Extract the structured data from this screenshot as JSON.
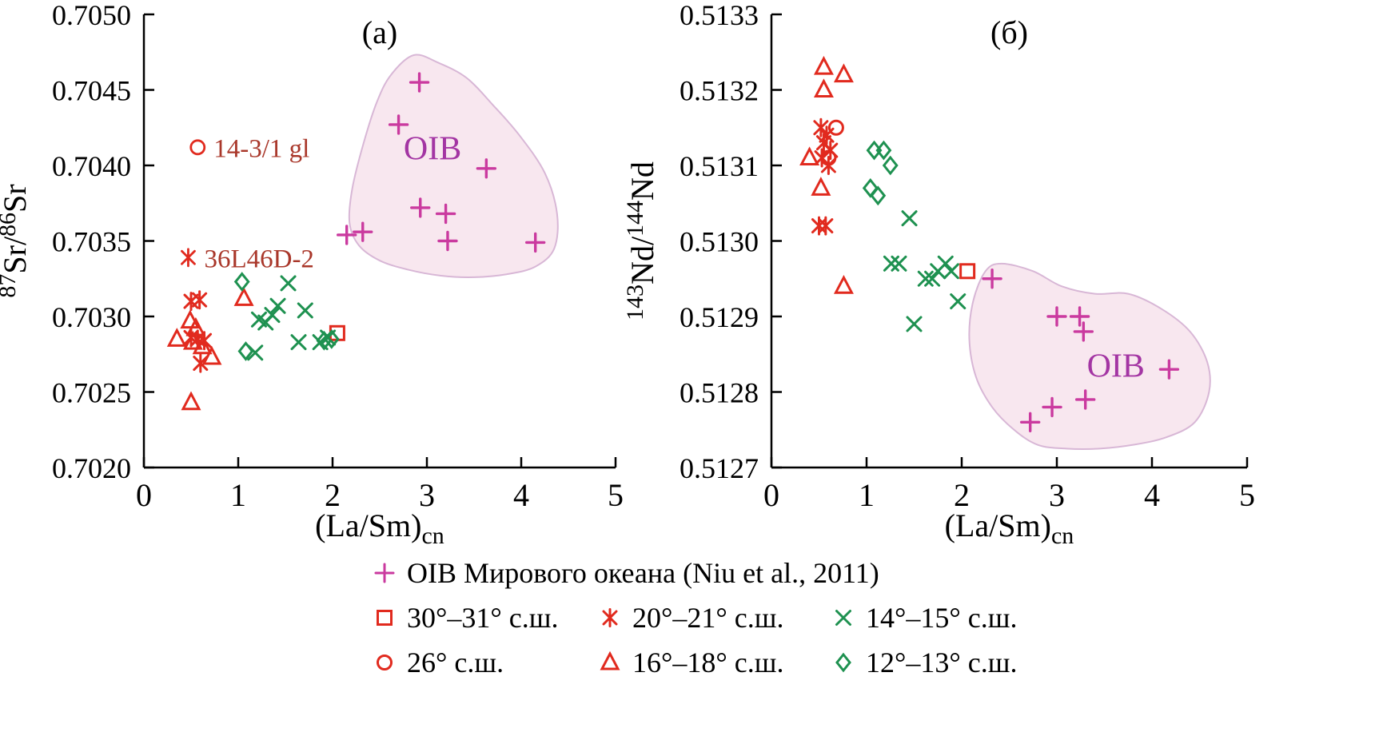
{
  "colors": {
    "red": "#e12a1e",
    "green": "#1e9150",
    "magenta": "#ca3a9f",
    "oib_fill": "#f8e7ef",
    "oib_stroke": "#d8b7d6",
    "oib_text": "#a335a3",
    "annotation_text": "#a9372a",
    "axis": "#000000"
  },
  "legend": {
    "rows": [
      [
        {
          "marker": "plus",
          "color_key": "magenta",
          "label": "OIB Мирового океана (Niu et al., 2011)"
        }
      ],
      [
        {
          "marker": "square",
          "color_key": "red",
          "label": "30°–31° с.ш."
        },
        {
          "marker": "asterisk",
          "color_key": "red",
          "label": "20°–21° с.ш."
        },
        {
          "marker": "x",
          "color_key": "green",
          "label": "14°–15° с.ш."
        }
      ],
      [
        {
          "marker": "circle",
          "color_key": "red",
          "label": "26° с.ш."
        },
        {
          "marker": "triangle",
          "color_key": "red",
          "label": "16°–18° с.ш."
        },
        {
          "marker": "diamond",
          "color_key": "green",
          "label": "12°–13° с.ш."
        }
      ]
    ]
  },
  "chart_data": [
    {
      "type": "scatter",
      "title": "(а)",
      "xlabel": "(La/Sm)cn",
      "xlabel_parts": [
        {
          "t": "(La/Sm)"
        },
        {
          "t": "cn",
          "sub": true
        }
      ],
      "ylabel": "87Sr/86Sr",
      "ylabel_parts": [
        {
          "t": "87",
          "sup": true
        },
        {
          "t": "Sr/"
        },
        {
          "t": "86",
          "sup": true
        },
        {
          "t": "Sr"
        }
      ],
      "xlim": [
        0,
        5
      ],
      "ylim": [
        0.702,
        0.705
      ],
      "grid": false,
      "xticks": [
        {
          "v": 0,
          "label": "0"
        },
        {
          "v": 1,
          "label": "1"
        },
        {
          "v": 2,
          "label": "2"
        },
        {
          "v": 3,
          "label": "3"
        },
        {
          "v": 4,
          "label": "4"
        },
        {
          "v": 5,
          "label": "5"
        }
      ],
      "yticks": [
        {
          "v": 0.702,
          "label": "0.7020"
        },
        {
          "v": 0.7025,
          "label": "0.7025"
        },
        {
          "v": 0.703,
          "label": "0.7030"
        },
        {
          "v": 0.7035,
          "label": "0.7035"
        },
        {
          "v": 0.704,
          "label": "0.7040"
        },
        {
          "v": 0.7045,
          "label": "0.7045"
        },
        {
          "v": 0.705,
          "label": "0.7050"
        }
      ],
      "oib_region": {
        "label": "OIB",
        "label_at": [
          3.06,
          0.70404
        ],
        "outline": [
          [
            2.62,
            0.7046
          ],
          [
            2.86,
            0.70473
          ],
          [
            3.12,
            0.70468
          ],
          [
            3.42,
            0.70458
          ],
          [
            3.7,
            0.7044
          ],
          [
            3.98,
            0.7042
          ],
          [
            4.25,
            0.70395
          ],
          [
            4.38,
            0.70368
          ],
          [
            4.35,
            0.70345
          ],
          [
            4.15,
            0.70333
          ],
          [
            3.85,
            0.70328
          ],
          [
            3.5,
            0.70326
          ],
          [
            3.15,
            0.70327
          ],
          [
            2.8,
            0.70331
          ],
          [
            2.5,
            0.70337
          ],
          [
            2.28,
            0.70347
          ],
          [
            2.18,
            0.70362
          ],
          [
            2.21,
            0.70385
          ],
          [
            2.33,
            0.70415
          ],
          [
            2.47,
            0.70442
          ]
        ]
      },
      "annotations": [
        {
          "text": "14-3/1 gl",
          "marker": "circle",
          "color_key": "red",
          "at": [
            0.57,
            0.70412
          ]
        },
        {
          "text": "36L46D-2",
          "marker": "asterisk",
          "color_key": "red",
          "at": [
            0.47,
            0.70339
          ]
        }
      ],
      "series": [
        {
          "name": "OIB Мирового океана (Niu et al., 2011)",
          "marker": "plus",
          "color_key": "magenta",
          "points": [
            [
              2.92,
              0.70455
            ],
            [
              2.7,
              0.70427
            ],
            [
              3.63,
              0.70398
            ],
            [
              2.93,
              0.70372
            ],
            [
              3.2,
              0.70368
            ],
            [
              2.15,
              0.70354
            ],
            [
              2.32,
              0.70356
            ],
            [
              3.22,
              0.7035
            ],
            [
              4.15,
              0.70349
            ]
          ]
        },
        {
          "name": "30°–31° с.ш.",
          "marker": "square",
          "color_key": "red",
          "points": [
            [
              2.05,
              0.70289
            ]
          ]
        },
        {
          "name": "20°–21° с.ш.",
          "marker": "asterisk",
          "color_key": "red",
          "points": [
            [
              0.5,
              0.7031
            ],
            [
              0.59,
              0.70311
            ],
            [
              0.5,
              0.70286
            ],
            [
              0.57,
              0.70285
            ],
            [
              0.64,
              0.70284
            ],
            [
              0.6,
              0.70269
            ]
          ]
        },
        {
          "name": "16°–18° с.ш.",
          "marker": "triangle",
          "color_key": "red",
          "points": [
            [
              0.35,
              0.70285
            ],
            [
              0.49,
              0.70297
            ],
            [
              0.55,
              0.70292
            ],
            [
              0.52,
              0.70283
            ],
            [
              0.62,
              0.7028
            ],
            [
              0.72,
              0.70273
            ],
            [
              0.5,
              0.70243
            ],
            [
              1.06,
              0.70312
            ]
          ]
        },
        {
          "name": "14°–15° с.ш.",
          "marker": "x",
          "color_key": "green",
          "points": [
            [
              1.22,
              0.70298
            ],
            [
              1.29,
              0.70296
            ],
            [
              1.36,
              0.70301
            ],
            [
              1.42,
              0.70307
            ],
            [
              1.53,
              0.70322
            ],
            [
              1.71,
              0.70304
            ],
            [
              1.18,
              0.70276
            ],
            [
              1.64,
              0.70283
            ],
            [
              1.87,
              0.70283
            ],
            [
              1.95,
              0.70286
            ]
          ]
        },
        {
          "name": "12°–13° с.ш.",
          "marker": "diamond",
          "color_key": "green",
          "points": [
            [
              1.04,
              0.70323
            ],
            [
              1.08,
              0.70277
            ],
            [
              1.91,
              0.70284
            ],
            [
              1.99,
              0.70285
            ]
          ]
        }
      ]
    },
    {
      "type": "scatter",
      "title": "(б)",
      "xlabel": "(La/Sm)cn",
      "xlabel_parts": [
        {
          "t": "(La/Sm)"
        },
        {
          "t": "cn",
          "sub": true
        }
      ],
      "ylabel": "143Nd/144Nd",
      "ylabel_parts": [
        {
          "t": "143",
          "sup": true
        },
        {
          "t": "Nd/"
        },
        {
          "t": "144",
          "sup": true
        },
        {
          "t": "Nd"
        }
      ],
      "xlim": [
        0,
        5
      ],
      "ylim": [
        0.5127,
        0.5133
      ],
      "grid": false,
      "xticks": [
        {
          "v": 0,
          "label": "0"
        },
        {
          "v": 1,
          "label": "1"
        },
        {
          "v": 2,
          "label": "2"
        },
        {
          "v": 3,
          "label": "3"
        },
        {
          "v": 4,
          "label": "4"
        },
        {
          "v": 5,
          "label": "5"
        }
      ],
      "yticks": [
        {
          "v": 0.5127,
          "label": "0.5127"
        },
        {
          "v": 0.5128,
          "label": "0.5128"
        },
        {
          "v": 0.5129,
          "label": "0.5129"
        },
        {
          "v": 0.513,
          "label": "0.5130"
        },
        {
          "v": 0.5131,
          "label": "0.5131"
        },
        {
          "v": 0.5132,
          "label": "0.5132"
        },
        {
          "v": 0.5133,
          "label": "0.5133"
        }
      ],
      "oib_region": {
        "label": "OIB",
        "label_at": [
          3.62,
          0.51282
        ],
        "outline": [
          [
            2.42,
            0.51297
          ],
          [
            2.75,
            0.51296
          ],
          [
            3.05,
            0.51294
          ],
          [
            3.4,
            0.51293
          ],
          [
            3.75,
            0.51293
          ],
          [
            4.1,
            0.51291
          ],
          [
            4.4,
            0.51288
          ],
          [
            4.58,
            0.51284
          ],
          [
            4.6,
            0.5128
          ],
          [
            4.45,
            0.51276
          ],
          [
            4.15,
            0.51274
          ],
          [
            3.8,
            0.51273
          ],
          [
            3.45,
            0.512725
          ],
          [
            3.1,
            0.512725
          ],
          [
            2.8,
            0.51273
          ],
          [
            2.55,
            0.51275
          ],
          [
            2.32,
            0.51278
          ],
          [
            2.15,
            0.51282
          ],
          [
            2.08,
            0.51287
          ],
          [
            2.12,
            0.51292
          ],
          [
            2.25,
            0.51296
          ]
        ]
      },
      "annotations": [],
      "series": [
        {
          "name": "OIB Мирового океана (Niu et al., 2011)",
          "marker": "plus",
          "color_key": "magenta",
          "points": [
            [
              2.32,
              0.51295
            ],
            [
              3.0,
              0.5129
            ],
            [
              3.24,
              0.5129
            ],
            [
              3.28,
              0.51288
            ],
            [
              4.18,
              0.51283
            ],
            [
              2.72,
              0.51276
            ],
            [
              2.95,
              0.51278
            ],
            [
              3.3,
              0.51279
            ]
          ]
        },
        {
          "name": "30°–31° с.ш.",
          "marker": "square",
          "color_key": "red",
          "points": [
            [
              2.06,
              0.51296
            ]
          ]
        },
        {
          "name": "26° с.ш.",
          "marker": "circle",
          "color_key": "red",
          "points": [
            [
              0.68,
              0.51315
            ],
            [
              0.6,
              0.51311
            ]
          ]
        },
        {
          "name": "20°–21° с.ш.",
          "marker": "asterisk",
          "color_key": "red",
          "points": [
            [
              0.52,
              0.51315
            ],
            [
              0.58,
              0.51314
            ],
            [
              0.55,
              0.51313
            ],
            [
              0.62,
              0.51312
            ],
            [
              0.53,
              0.51311
            ],
            [
              0.6,
              0.5131
            ],
            [
              0.5,
              0.51302
            ],
            [
              0.57,
              0.51302
            ]
          ]
        },
        {
          "name": "16°–18° с.ш.",
          "marker": "triangle",
          "color_key": "red",
          "points": [
            [
              0.55,
              0.51323
            ],
            [
              0.76,
              0.51322
            ],
            [
              0.55,
              0.5132
            ],
            [
              0.4,
              0.51311
            ],
            [
              0.52,
              0.51307
            ],
            [
              0.76,
              0.51294
            ]
          ]
        },
        {
          "name": "14°–15° с.ш.",
          "marker": "x",
          "color_key": "green",
          "points": [
            [
              1.45,
              0.51303
            ],
            [
              1.26,
              0.51297
            ],
            [
              1.34,
              0.51297
            ],
            [
              1.62,
              0.51295
            ],
            [
              1.69,
              0.51295
            ],
            [
              1.83,
              0.51297
            ],
            [
              1.89,
              0.51296
            ],
            [
              1.96,
              0.51292
            ],
            [
              1.5,
              0.51289
            ],
            [
              1.75,
              0.51296
            ]
          ]
        },
        {
          "name": "12°–13° с.ш.",
          "marker": "diamond",
          "color_key": "green",
          "points": [
            [
              1.08,
              0.51312
            ],
            [
              1.18,
              0.51312
            ],
            [
              1.25,
              0.5131
            ],
            [
              1.04,
              0.51307
            ],
            [
              1.12,
              0.51306
            ]
          ]
        }
      ]
    }
  ]
}
